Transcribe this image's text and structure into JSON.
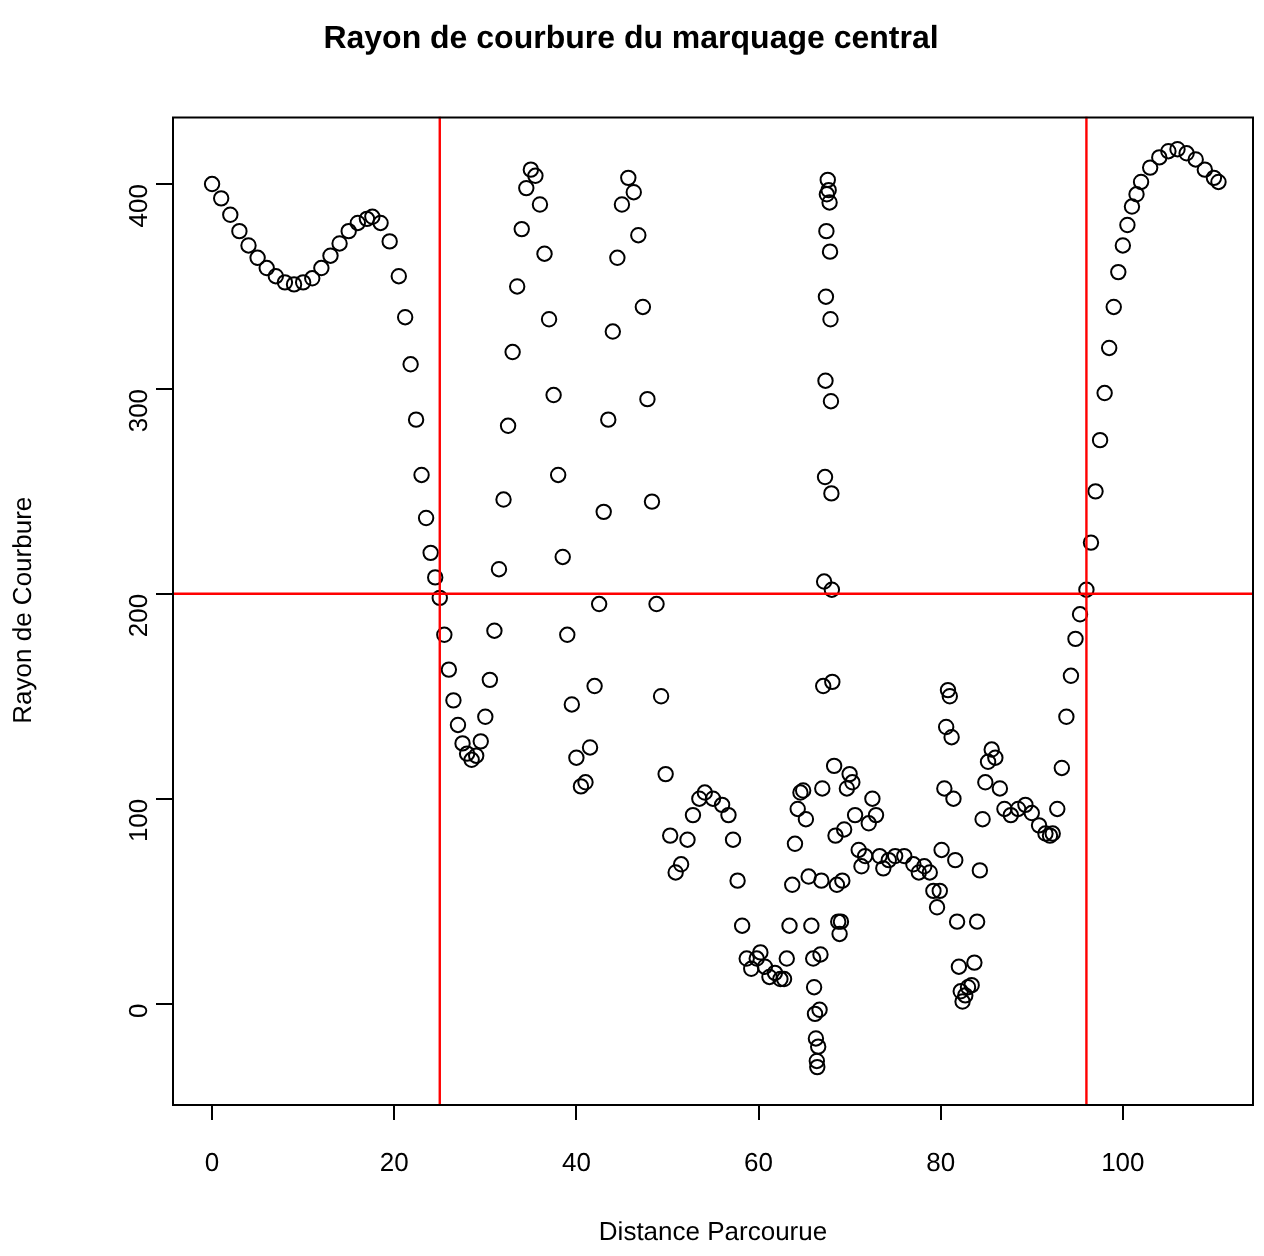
{
  "chart_data": {
    "type": "scatter",
    "title": "Rayon de courbure du marquage central",
    "xlabel": "Distance Parcourue",
    "ylabel": "Rayon de Courbure",
    "x": [
      0,
      1,
      2,
      3,
      4,
      5,
      6,
      7,
      8,
      9,
      10,
      11,
      12,
      13,
      14,
      15,
      16,
      17,
      17.6,
      18.5,
      19.5,
      20.5,
      21.2,
      21.8,
      22.4,
      23,
      23.5,
      24,
      24.5,
      25,
      25.5,
      26,
      26.5,
      27,
      27.5,
      28,
      28.5,
      29,
      29.5,
      30,
      30.5,
      31,
      31.5,
      32,
      32.5,
      33,
      33.5,
      34,
      34.5,
      35,
      35.5,
      36,
      36.5,
      37,
      37.5,
      38,
      38.5,
      39,
      39.5,
      40,
      40.5,
      41,
      41.5,
      42,
      42.5,
      43,
      43.5,
      44,
      44.5,
      45,
      45.7,
      46.3,
      46.8,
      47.3,
      47.8,
      48.3,
      48.8,
      49.3,
      49.8,
      50.3,
      50.9,
      51.5,
      52.2,
      52.8,
      53.5,
      54.1,
      55,
      56,
      56.7,
      57.2,
      57.7,
      58.2,
      58.7,
      59.2,
      59.8,
      60.2,
      60.7,
      61.2,
      61.8,
      62.4,
      62.8,
      63.1,
      63.4,
      63.7,
      64,
      64.3,
      64.6,
      64.9,
      65.2,
      65.5,
      65.8,
      66,
      66.1,
      66.2,
      66.3,
      66.4,
      66.45,
      66.55,
      66.7,
      66.8,
      66.9,
      67,
      67.1,
      67.2,
      67.3,
      67.35,
      67.4,
      67.45,
      67.5,
      67.6,
      67.7,
      67.8,
      67.85,
      67.9,
      67.95,
      68,
      68.05,
      68.1,
      68.3,
      68.45,
      68.6,
      68.75,
      68.9,
      69.05,
      69.2,
      69.4,
      69.7,
      70,
      70.3,
      70.6,
      71,
      71.3,
      71.7,
      72.1,
      72.5,
      72.9,
      73.3,
      73.7,
      74.3,
      75,
      76,
      77,
      77.6,
      78.2,
      78.8,
      79.2,
      79.6,
      79.9,
      80.1,
      80.4,
      80.6,
      80.8,
      81,
      81.2,
      81.4,
      81.6,
      81.8,
      82,
      82.2,
      82.4,
      82.7,
      83,
      83.4,
      83.7,
      84,
      84.3,
      84.6,
      84.9,
      85.2,
      85.6,
      86,
      86.5,
      87,
      87.7,
      88.5,
      89.3,
      90,
      90.8,
      91.5,
      92,
      92.3,
      92.8,
      93.3,
      93.8,
      94.3,
      94.8,
      95.3,
      96,
      96.5,
      97,
      97.5,
      98,
      98.5,
      99,
      99.5,
      100,
      100.5,
      101,
      101.5,
      102,
      103,
      104,
      105,
      106,
      107,
      108,
      109,
      110,
      110.5
    ],
    "values": [
      400,
      393,
      385,
      377,
      370,
      364,
      359,
      355,
      352,
      351,
      352,
      354,
      359,
      365,
      371,
      377,
      381,
      383,
      384,
      381,
      372,
      355,
      335,
      312,
      285,
      258,
      237,
      220,
      208,
      198,
      180,
      163,
      148,
      136,
      127,
      122,
      119,
      121,
      128,
      140,
      158,
      182,
      212,
      246,
      282,
      318,
      350,
      378,
      398,
      407,
      404,
      390,
      366,
      334,
      297,
      258,
      218,
      180,
      146,
      120,
      106,
      108,
      125,
      155,
      195,
      240,
      285,
      328,
      364,
      390,
      403,
      396,
      375,
      340,
      295,
      245,
      195,
      150,
      112,
      82,
      64,
      68,
      80,
      92,
      100,
      103,
      100,
      97,
      92,
      80,
      60,
      38,
      22,
      17,
      22,
      25,
      18,
      13,
      15,
      12,
      12,
      22,
      38,
      58,
      78,
      95,
      103,
      104,
      90,
      62,
      38,
      22,
      8,
      -5,
      -17,
      -28,
      -31,
      -21,
      -3,
      24,
      60,
      105,
      155,
      206,
      257,
      304,
      345,
      377,
      395,
      402,
      397,
      391,
      367,
      334,
      294,
      249,
      202,
      157,
      116,
      82,
      58,
      40,
      34,
      40,
      60,
      85,
      105,
      112,
      108,
      92,
      75,
      67,
      72,
      88,
      100,
      92,
      72,
      66,
      70,
      72,
      72,
      68,
      64,
      67,
      64,
      55,
      47,
      55,
      75,
      105,
      135,
      153,
      150,
      130,
      100,
      70,
      40,
      18,
      6,
      1,
      4,
      8,
      9,
      20,
      40,
      65,
      90,
      108,
      118,
      124,
      120,
      105,
      95,
      92,
      95,
      97,
      93,
      87,
      83,
      82,
      83,
      95,
      115,
      140,
      160,
      178,
      190,
      202,
      225,
      250,
      275,
      298,
      320,
      340,
      357,
      370,
      380,
      389,
      395,
      401,
      408,
      413,
      416,
      417,
      415,
      412,
      407,
      403,
      401
    ],
    "color": "#000000",
    "marker": "circle",
    "xlim": [
      -4.4,
      114.4
    ],
    "ylim": [
      -49,
      433
    ],
    "xticks": [
      0,
      20,
      40,
      60,
      80,
      100
    ],
    "yticks": [
      0,
      100,
      200,
      300,
      400
    ],
    "ref_lines": [
      {
        "axis": "x",
        "value": 25,
        "color": "#ff0000"
      },
      {
        "axis": "x",
        "value": 96,
        "color": "#ff0000"
      },
      {
        "axis": "y",
        "value": 200,
        "color": "#ff0000"
      }
    ]
  }
}
